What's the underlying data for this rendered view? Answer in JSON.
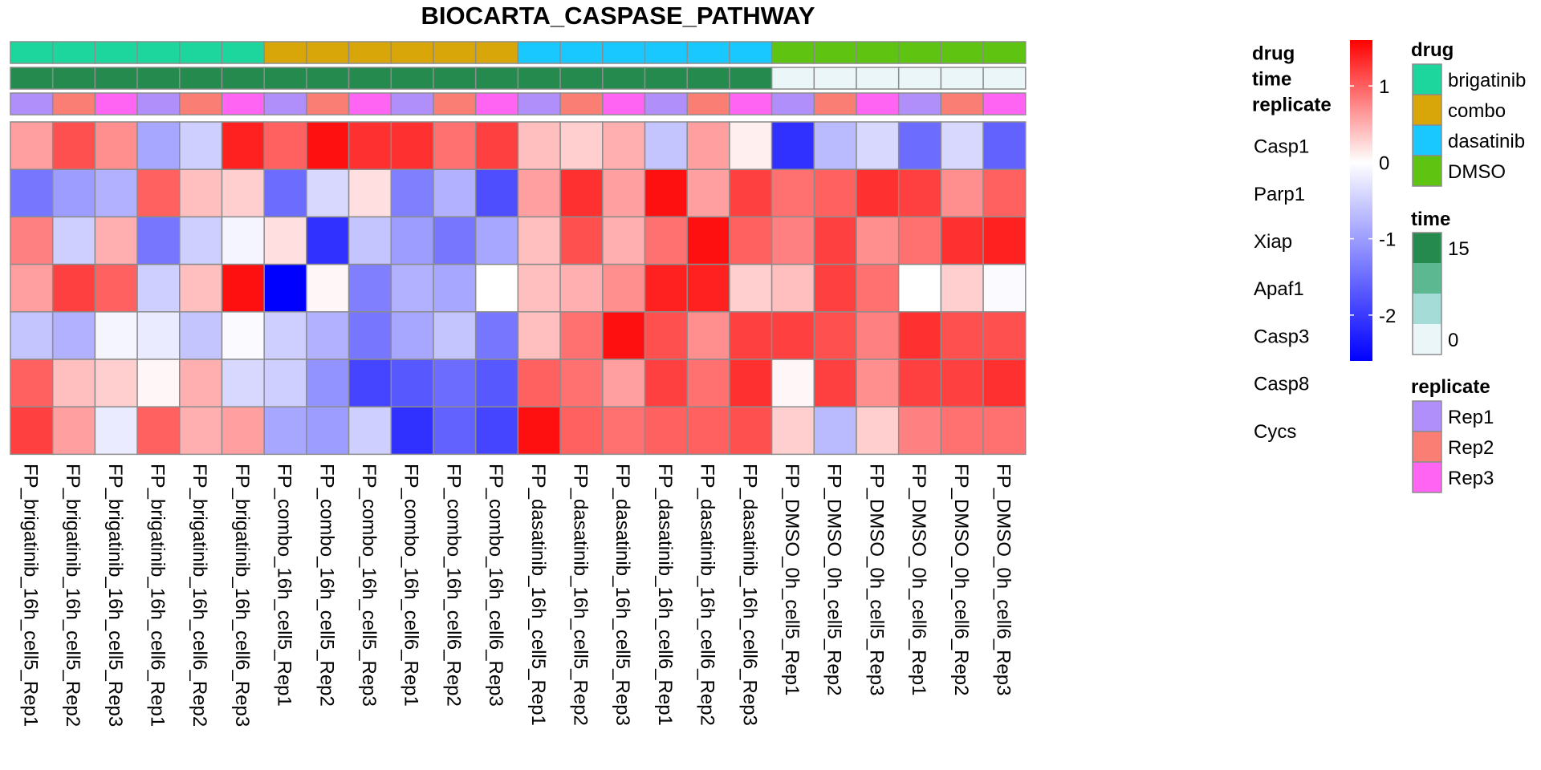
{
  "chart_data": {
    "type": "heatmap",
    "title": "BIOCARTA_CASPASE_PATHWAY",
    "columns": [
      "FP_brigatinib_16h_cell5_Rep1",
      "FP_brigatinib_16h_cell5_Rep2",
      "FP_brigatinib_16h_cell5_Rep3",
      "FP_brigatinib_16h_cell6_Rep1",
      "FP_brigatinib_16h_cell6_Rep2",
      "FP_brigatinib_16h_cell6_Rep3",
      "FP_combo_16h_cell5_Rep1",
      "FP_combo_16h_cell5_Rep2",
      "FP_combo_16h_cell5_Rep3",
      "FP_combo_16h_cell6_Rep1",
      "FP_combo_16h_cell6_Rep2",
      "FP_combo_16h_cell6_Rep3",
      "FP_dasatinib_16h_cell5_Rep1",
      "FP_dasatinib_16h_cell5_Rep2",
      "FP_dasatinib_16h_cell5_Rep3",
      "FP_dasatinib_16h_cell6_Rep1",
      "FP_dasatinib_16h_cell6_Rep2",
      "FP_dasatinib_16h_cell6_Rep3",
      "FP_DMSO_0h_cell5_Rep1",
      "FP_DMSO_0h_cell5_Rep2",
      "FP_DMSO_0h_cell5_Rep3",
      "FP_DMSO_0h_cell6_Rep1",
      "FP_DMSO_0h_cell6_Rep2",
      "FP_DMSO_0h_cell6_Rep3"
    ],
    "rows": [
      "Casp1",
      "Parp1",
      "Xiap",
      "Apaf1",
      "Casp3",
      "Casp8",
      "Cycs"
    ],
    "values": [
      [
        0.6,
        1.1,
        0.7,
        -0.9,
        -0.5,
        1.4,
        1.0,
        1.5,
        1.3,
        1.3,
        0.9,
        1.2,
        0.4,
        0.3,
        0.5,
        -0.6,
        0.6,
        0.1,
        -2.1,
        -0.7,
        -0.4,
        -1.5,
        -0.4,
        -1.6
      ],
      [
        -1.4,
        -1.0,
        -0.8,
        1.0,
        0.4,
        0.3,
        -1.5,
        -0.4,
        0.2,
        -1.3,
        -0.8,
        -1.8,
        0.6,
        1.3,
        0.6,
        1.5,
        0.6,
        1.2,
        0.9,
        1.0,
        1.3,
        1.2,
        0.7,
        1.0
      ],
      [
        0.8,
        -0.5,
        0.5,
        -1.4,
        -0.5,
        -0.1,
        0.2,
        -2.1,
        -0.6,
        -1.0,
        -1.4,
        -0.9,
        0.4,
        1.1,
        0.5,
        0.9,
        1.5,
        1.0,
        0.8,
        1.2,
        0.7,
        0.9,
        1.3,
        1.4
      ],
      [
        0.6,
        1.2,
        1.0,
        -0.5,
        0.4,
        1.5,
        -2.6,
        0.05,
        -1.3,
        -0.8,
        -0.9,
        0.0,
        0.4,
        0.5,
        0.7,
        1.4,
        1.4,
        0.3,
        0.4,
        1.2,
        0.9,
        0.0,
        0.3,
        -0.05
      ],
      [
        -0.6,
        -0.8,
        -0.1,
        -0.2,
        -0.6,
        -0.05,
        -0.5,
        -0.8,
        -1.4,
        -0.9,
        -0.6,
        -1.4,
        0.4,
        0.9,
        1.5,
        1.1,
        0.7,
        1.2,
        1.2,
        1.1,
        0.8,
        1.3,
        1.1,
        1.1
      ],
      [
        1.0,
        0.4,
        0.3,
        0.05,
        0.5,
        -0.4,
        -0.5,
        -1.1,
        -1.9,
        -1.7,
        -1.5,
        -1.7,
        1.0,
        0.9,
        0.6,
        1.2,
        0.9,
        1.3,
        0.05,
        1.2,
        0.7,
        1.2,
        1.2,
        1.3
      ],
      [
        1.2,
        0.6,
        -0.2,
        1.0,
        0.5,
        0.6,
        -0.9,
        -1.0,
        -0.5,
        -2.1,
        -1.6,
        -1.9,
        1.5,
        1.0,
        0.9,
        1.0,
        1.0,
        1.1,
        0.3,
        -0.7,
        0.3,
        0.8,
        0.9,
        0.9
      ]
    ],
    "color_scale": {
      "min_color": "#0000FF",
      "mid_color": "#FFFFFF",
      "max_color": "#FF0000",
      "range": [
        -2.6,
        1.6
      ],
      "ticks": [
        1,
        0,
        -1,
        -2
      ],
      "tick_labels": [
        "1",
        "0",
        "-1",
        "-2"
      ]
    },
    "annotations": [
      {
        "name": "drug",
        "values": [
          "brigatinib",
          "brigatinib",
          "brigatinib",
          "brigatinib",
          "brigatinib",
          "brigatinib",
          "combo",
          "combo",
          "combo",
          "combo",
          "combo",
          "combo",
          "dasatinib",
          "dasatinib",
          "dasatinib",
          "dasatinib",
          "dasatinib",
          "dasatinib",
          "DMSO",
          "DMSO",
          "DMSO",
          "DMSO",
          "DMSO",
          "DMSO"
        ],
        "legend": [
          {
            "label": "brigatinib",
            "color": "#1DD69D"
          },
          {
            "label": "combo",
            "color": "#D9A60A"
          },
          {
            "label": "dasatinib",
            "color": "#18C8FF"
          },
          {
            "label": "DMSO",
            "color": "#5FC411"
          }
        ]
      },
      {
        "name": "time",
        "values": [
          16,
          16,
          16,
          16,
          16,
          16,
          16,
          16,
          16,
          16,
          16,
          16,
          16,
          16,
          16,
          16,
          16,
          16,
          0,
          0,
          0,
          0,
          0,
          0
        ],
        "legend_stops": [
          "#248A4D",
          "#5BB890",
          "#A6DCD8",
          "#EAF6F8"
        ],
        "legend_labels": [
          "15",
          "0"
        ]
      },
      {
        "name": "replicate",
        "values": [
          "Rep1",
          "Rep2",
          "Rep3",
          "Rep1",
          "Rep2",
          "Rep3",
          "Rep1",
          "Rep2",
          "Rep3",
          "Rep1",
          "Rep2",
          "Rep3",
          "Rep1",
          "Rep2",
          "Rep3",
          "Rep1",
          "Rep2",
          "Rep3",
          "Rep1",
          "Rep2",
          "Rep3",
          "Rep1",
          "Rep2",
          "Rep3"
        ],
        "legend": [
          {
            "label": "Rep1",
            "color": "#B18FFA"
          },
          {
            "label": "Rep2",
            "color": "#FA7E73"
          },
          {
            "label": "Rep3",
            "color": "#FF64F2"
          }
        ]
      }
    ]
  }
}
